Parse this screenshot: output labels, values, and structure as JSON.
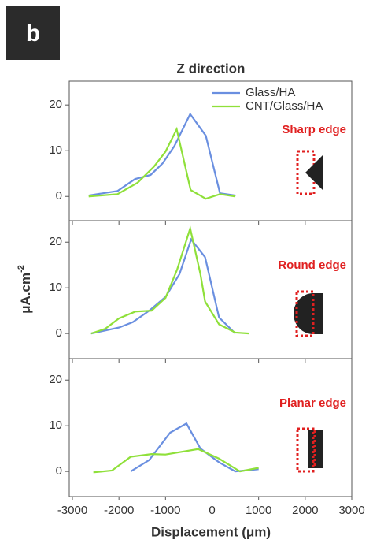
{
  "figure": {
    "panel_label": "b",
    "title": "Z direction",
    "y_label": "μA.cm",
    "y_label_sup": "-2",
    "x_label": "Displacement (μm)"
  },
  "chart_data": [
    {
      "type": "line",
      "annotation": "Sharp edge",
      "xlim": [
        -3000,
        3000
      ],
      "ylim": [
        -5.3,
        25.2
      ],
      "yticks": [
        0,
        10,
        20
      ],
      "legend": "top-right",
      "series": [
        {
          "name": "Glass/HA",
          "color": "#6a8fe0",
          "x": [
            -2650,
            -2030,
            -1655,
            -1320,
            -1065,
            -810,
            -470,
            -135,
            170,
            505
          ],
          "values": [
            0.2,
            1.2,
            3.8,
            4.7,
            7.2,
            11,
            18,
            13.3,
            0.7,
            0.2
          ]
        },
        {
          "name": "CNT/Glass/HA",
          "color": "#8fe03a",
          "x": [
            -2650,
            -2030,
            -1600,
            -1250,
            -1000,
            -760,
            -460,
            -135,
            170,
            500
          ],
          "values": [
            0,
            0.5,
            3,
            6.5,
            9.8,
            14.7,
            1.4,
            -0.5,
            0.5,
            0
          ]
        }
      ]
    },
    {
      "type": "line",
      "annotation": "Round edge",
      "xlim": [
        -3000,
        3000
      ],
      "ylim": [
        -5.5,
        24.7
      ],
      "yticks": [
        0,
        10,
        20
      ],
      "series": [
        {
          "color": "#6a8fe0",
          "x": [
            -2600,
            -2000,
            -1700,
            -1350,
            -1000,
            -700,
            -450,
            -150,
            150,
            500
          ],
          "values": [
            0,
            1.3,
            2.5,
            5,
            8,
            13,
            20.6,
            16.7,
            3.5,
            0
          ]
        },
        {
          "color": "#8fe03a",
          "x": [
            -2600,
            -2300,
            -2000,
            -1650,
            -1300,
            -1000,
            -750,
            -470,
            -250,
            -150,
            150,
            500,
            800
          ],
          "values": [
            0,
            1,
            3.3,
            4.8,
            5,
            7.8,
            14,
            23,
            13,
            7,
            2,
            0.2,
            0
          ]
        }
      ]
    },
    {
      "type": "line",
      "annotation": "Planar edge",
      "xlim": [
        -3000,
        3000
      ],
      "ylim": [
        -5.5,
        24.7
      ],
      "yticks": [
        0,
        10,
        20
      ],
      "xticks": [
        -3000,
        -2000,
        -1000,
        0,
        1000,
        2000,
        3000
      ],
      "series": [
        {
          "color": "#6a8fe0",
          "x": [
            -1750,
            -1350,
            -900,
            -550,
            -250,
            150,
            500,
            1000
          ],
          "values": [
            0,
            2.5,
            8.5,
            10.5,
            5,
            2,
            0,
            0.5
          ]
        },
        {
          "color": "#8fe03a",
          "x": [
            -2550,
            -2150,
            -1750,
            -1300,
            -1000,
            -300,
            150,
            600,
            1000
          ],
          "values": [
            -0.2,
            0.2,
            3.2,
            3.8,
            3.7,
            4.9,
            2.8,
            0,
            0.8
          ]
        }
      ]
    }
  ]
}
